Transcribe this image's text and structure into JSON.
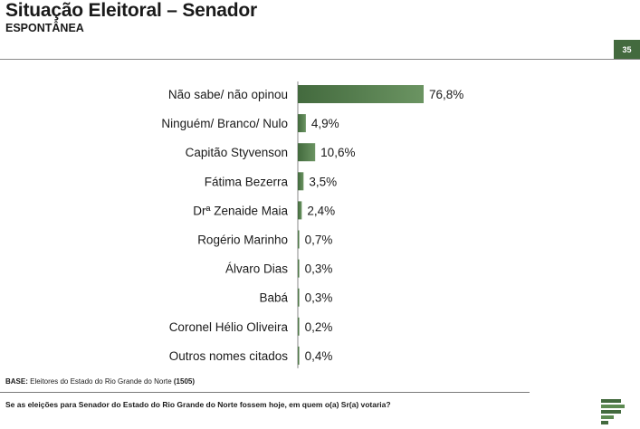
{
  "header": {
    "title": "Situação Eleitoral – Senador",
    "subtitle": "ESPONTÂNEA",
    "page_number": "35"
  },
  "footer": {
    "base_label": "BASE:",
    "base_text": " Eleitores do Estado do Rio Grande do Norte ",
    "base_count": "(1505)",
    "question": "Se as eleições para Senador do Estado do Rio Grande do Norte fossem hoje, em quem o(a) Sr(a) votaria?"
  },
  "colors": {
    "bar": "#436a3e",
    "bar_light": "#6b9462",
    "accent": "#436a3e"
  },
  "logo_icon": "green-stripes-logo-icon",
  "chart_data": {
    "type": "bar",
    "orientation": "horizontal",
    "title": "Situação Eleitoral – Senador",
    "subtitle": "ESPONTÂNEA",
    "xlabel": "",
    "ylabel": "",
    "categories": [
      "Não sabe/ não opinou",
      "Ninguém/ Branco/ Nulo",
      "Capitão Styvenson",
      "Fátima Bezerra",
      "Drª Zenaide Maia",
      "Rogério Marinho",
      "Álvaro Dias",
      "Babá",
      "Coronel Hélio Oliveira",
      "Outros nomes citados"
    ],
    "values": [
      76.8,
      4.9,
      10.6,
      3.5,
      2.4,
      0.7,
      0.3,
      0.3,
      0.2,
      0.4
    ],
    "value_labels": [
      "76,8%",
      "4,9%",
      "10,6%",
      "3,5%",
      "2,4%",
      "0,7%",
      "0,3%",
      "0,3%",
      "0,2%",
      "0,4%"
    ],
    "xlim": [
      0,
      100
    ],
    "grid": false,
    "legend": "none"
  }
}
